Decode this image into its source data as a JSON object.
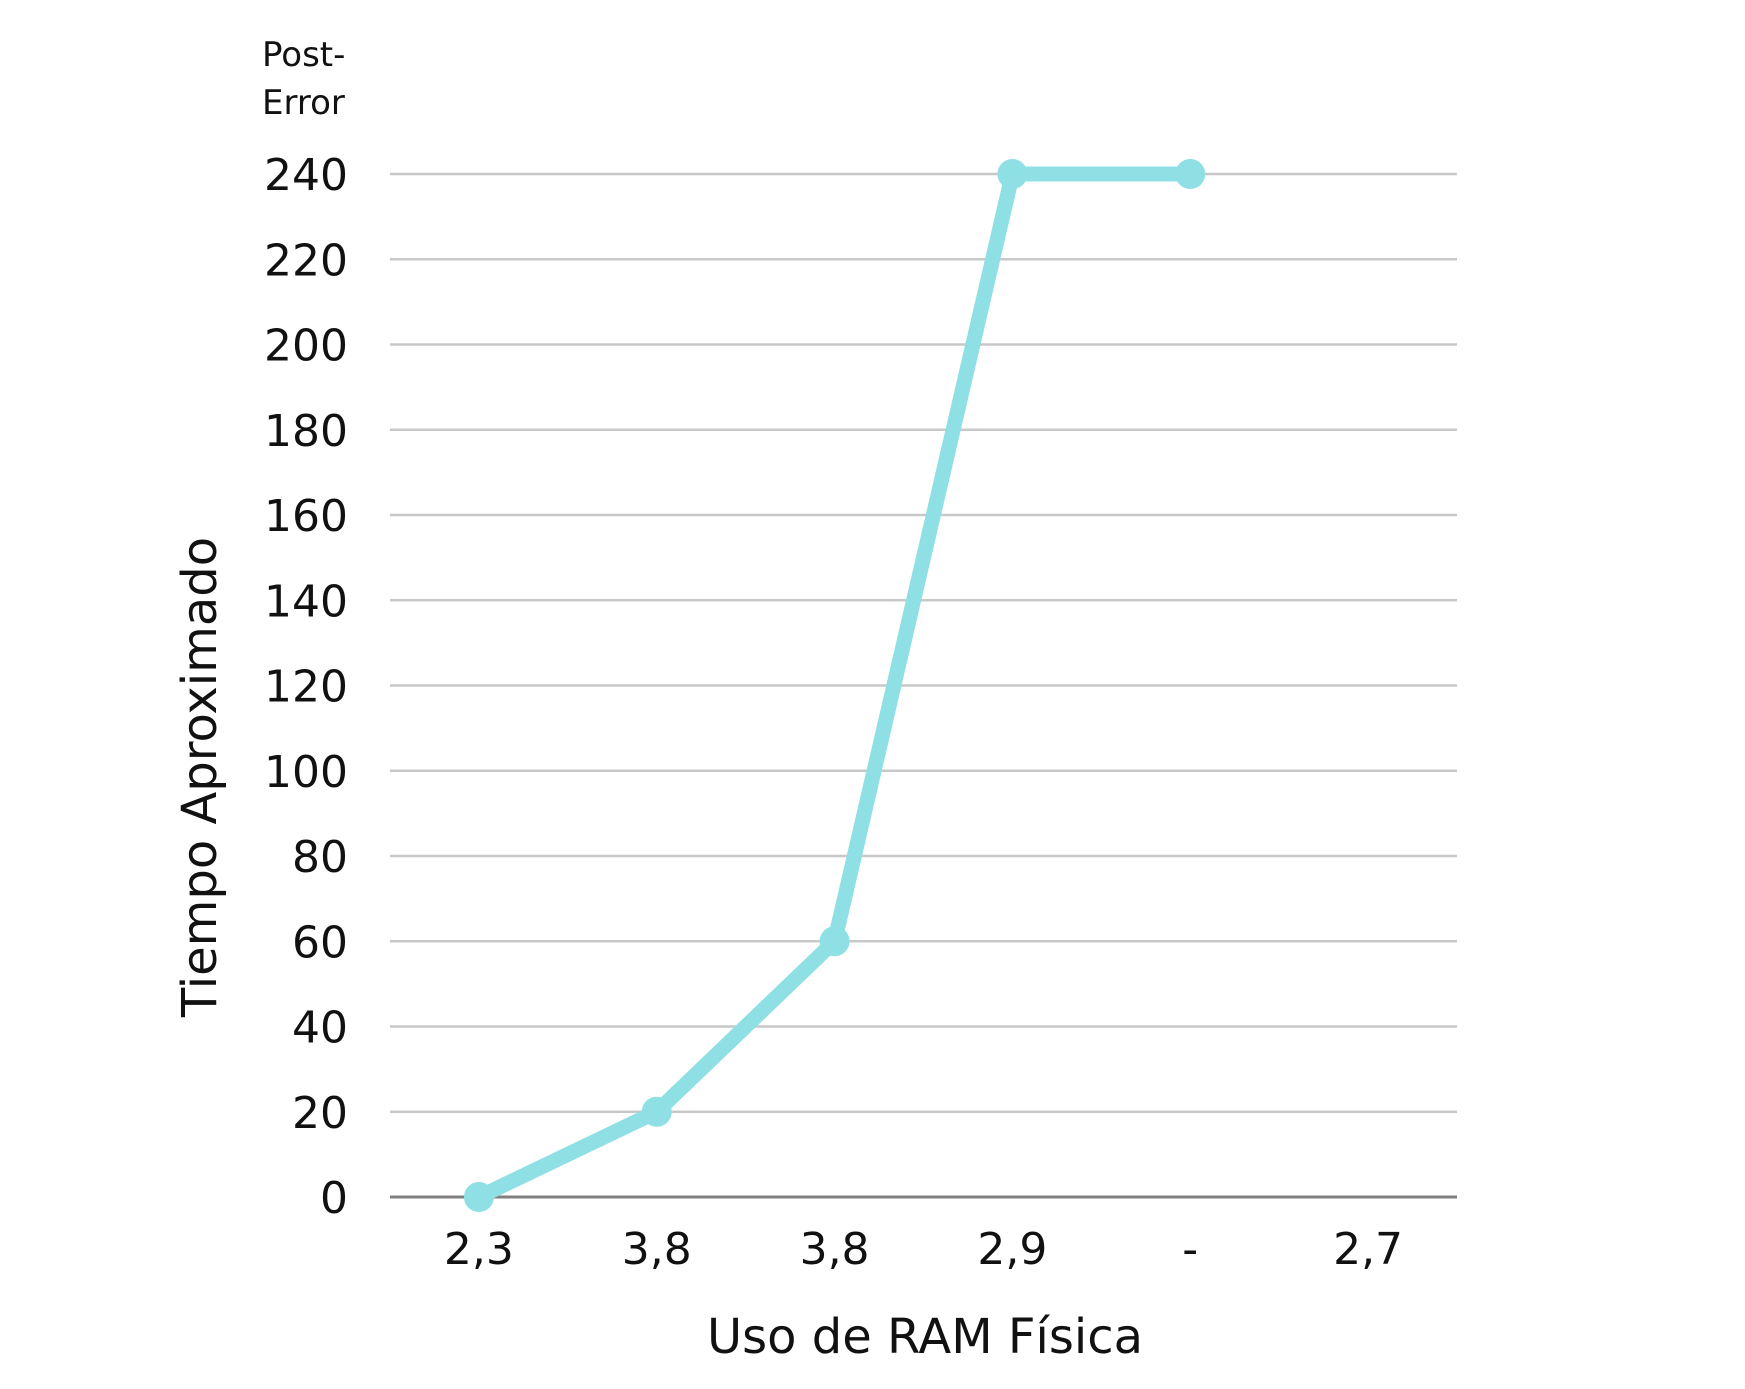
{
  "chart_data": {
    "type": "line",
    "categories": [
      "2,3",
      "3,8",
      "3,8",
      "2,9",
      "-",
      "2,7"
    ],
    "series": [
      {
        "values": [
          0,
          20,
          60,
          240,
          240,
          null
        ]
      }
    ],
    "xlabel": "Uso de RAM Física",
    "ylabel": "Tiempo Aproximado",
    "corner_label_lines": [
      "Post-",
      "Error"
    ],
    "ylim": [
      0,
      240
    ],
    "yticks": [
      0,
      20,
      40,
      60,
      80,
      100,
      120,
      140,
      160,
      180,
      200,
      220,
      240
    ],
    "grid": true,
    "legend": "none",
    "colors": {
      "series": "#8EE0E4",
      "grid": "#c8c8c8",
      "baseline": "#808080",
      "text": "#111111"
    }
  }
}
